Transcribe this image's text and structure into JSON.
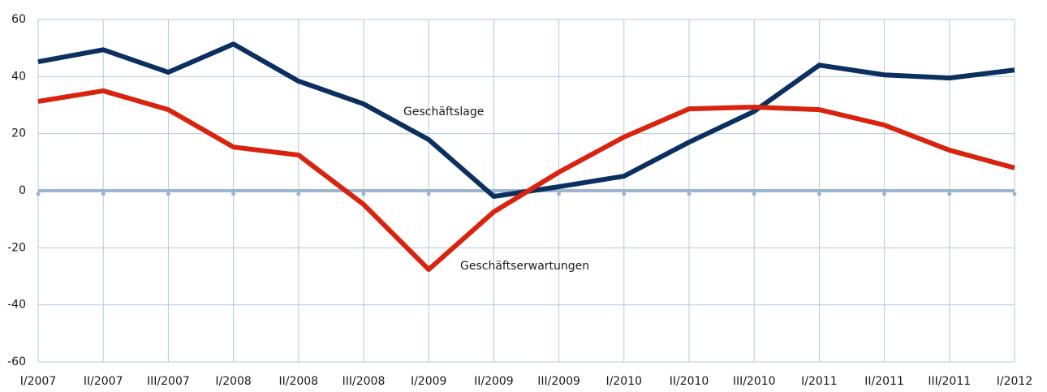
{
  "chart_data": {
    "type": "line",
    "categories": [
      "I/2007",
      "II/2007",
      "III/2007",
      "I/2008",
      "II/2008",
      "III/2008",
      "I/2009",
      "II/2009",
      "III/2009",
      "I/2010",
      "II/2010",
      "III/2010",
      "I/2011",
      "II/2011",
      "III/2011",
      "I/2012"
    ],
    "series": [
      {
        "name": "Geschäftslage",
        "color": "#0b3060",
        "values": [
          45.2,
          49.4,
          41.5,
          51.4,
          38.4,
          30.4,
          17.9,
          -2,
          1.4,
          5.1,
          17,
          27.8,
          44,
          40.6,
          39.5,
          42.3
        ]
      },
      {
        "name": "Geschäftserwartungen",
        "color": "#d9230f",
        "values": [
          31.3,
          35,
          28.4,
          15.3,
          12.5,
          -4.8,
          -27.6,
          -7.4,
          6.5,
          18.8,
          28.7,
          29.3,
          28.4,
          23,
          14.2,
          8
        ]
      }
    ],
    "ylim": [
      -60,
      60
    ],
    "yticks": [
      -60,
      -40,
      -20,
      0,
      20,
      40,
      60
    ],
    "grid": true
  }
}
